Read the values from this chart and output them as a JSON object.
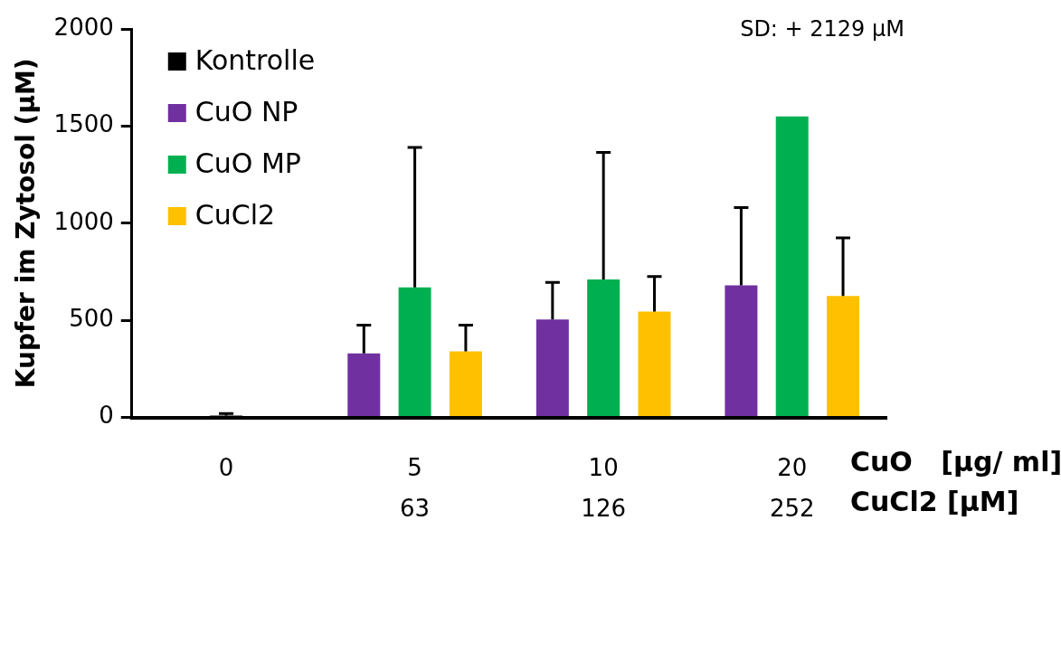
{
  "chart_data": {
    "type": "bar",
    "ylabel": "Kupfer im Zytosol (µM)",
    "xlabel": "CuO   [µg/ ml]\nCuCl2 [µM]",
    "categories": [
      "0",
      "5\n63",
      "10\n126",
      "20\n252"
    ],
    "series": [
      {
        "name": "Kontrolle",
        "color": "#000000",
        "values": [
          10,
          null,
          null,
          null
        ],
        "errors": [
          10,
          null,
          null,
          null
        ]
      },
      {
        "name": "CuO NP",
        "color": "#7030a0",
        "values": [
          null,
          330,
          505,
          680
        ],
        "errors": [
          null,
          145,
          190,
          400
        ]
      },
      {
        "name": "CuO MP",
        "color": "#00b050",
        "values": [
          null,
          670,
          710,
          1550
        ],
        "errors": [
          null,
          720,
          655,
          null
        ]
      },
      {
        "name": "CuCl2",
        "color": "#ffc000",
        "values": [
          null,
          340,
          545,
          625
        ],
        "errors": [
          null,
          135,
          180,
          300
        ]
      }
    ],
    "ylim": [
      0,
      2000
    ],
    "yticks": [
      0,
      500,
      1000,
      1500,
      2000
    ],
    "grid": false,
    "legend": "top left",
    "annotations": [
      "SD: + 2129 µM"
    ]
  }
}
